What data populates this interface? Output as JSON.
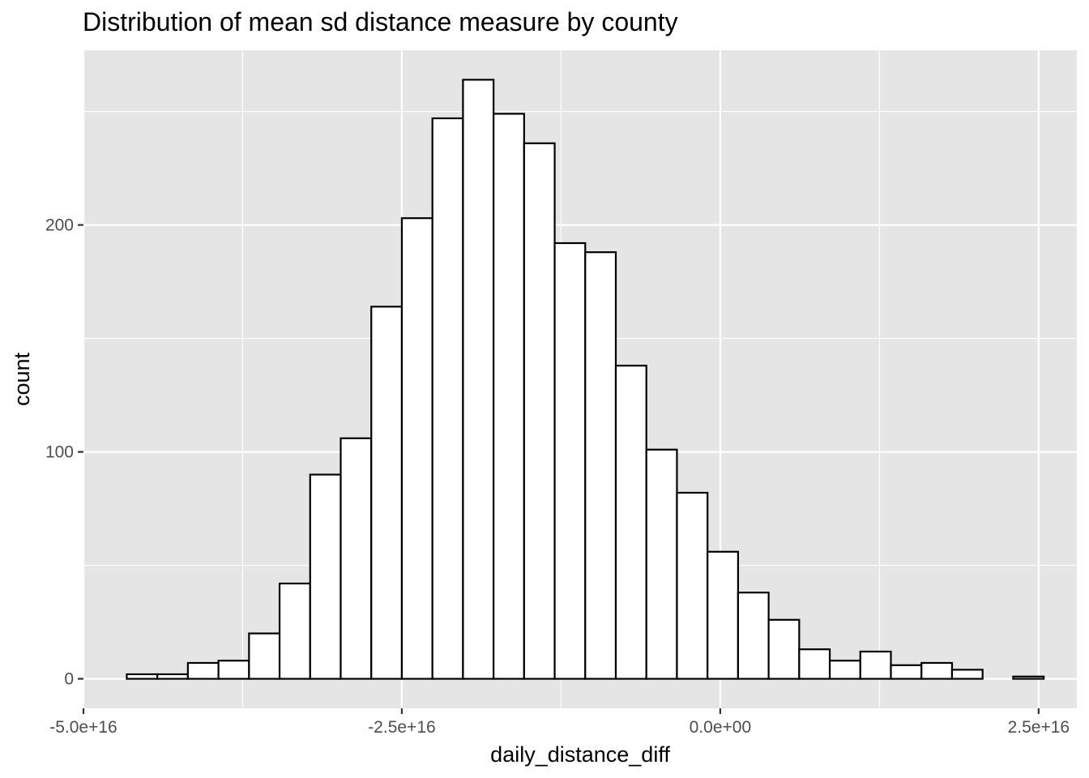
{
  "chart_data": {
    "type": "bar",
    "title": "Distribution of mean sd distance measure by county",
    "xlabel": "daily_distance_diff",
    "ylabel": "count",
    "xlim": [
      -5e+16,
      2.8e+16
    ],
    "ylim": [
      -13,
      277
    ],
    "x_ticks": [
      {
        "value": -5e+16,
        "label": "-5.0e+16"
      },
      {
        "value": -2.5e+16,
        "label": "-2.5e+16"
      },
      {
        "value": 0,
        "label": "0.0e+00"
      },
      {
        "value": 2.5e+16,
        "label": "2.5e+16"
      }
    ],
    "y_ticks": [
      {
        "value": 0,
        "label": "0"
      },
      {
        "value": 100,
        "label": "100"
      },
      {
        "value": 200,
        "label": "200"
      }
    ],
    "bin_width": 2400000000000000.0,
    "bins_start": [
      -4.66e+16,
      -4.42e+16,
      -4.18e+16,
      -3.94e+16,
      -3.7e+16,
      -3.46e+16,
      -3.22e+16,
      -2.98e+16,
      -2.74e+16,
      -2.5e+16,
      -2.26e+16,
      -2.02e+16,
      -1.78e+16,
      -1.54e+16,
      -1.3e+16,
      -1.06e+16,
      -8200000000000000.0,
      -5800000000000000.0,
      -3400000000000000.0,
      -1000000000000000.0,
      1400000000000000.0,
      3800000000000000.0,
      6200000000000000.0,
      8600000000000000.0,
      1.1e+16,
      1.34e+16,
      1.58e+16,
      1.82e+16,
      2.06e+16,
      2.3e+16
    ],
    "values": [
      2,
      2,
      7,
      8,
      20,
      42,
      90,
      106,
      164,
      203,
      247,
      264,
      249,
      236,
      192,
      188,
      138,
      101,
      82,
      56,
      38,
      26,
      13,
      8,
      12,
      6,
      7,
      4,
      0,
      1
    ],
    "fill": "#ffffff",
    "outline": "#000000",
    "panel_background": "#e5e5e5",
    "grid": true,
    "grid_color": "#ffffff"
  }
}
